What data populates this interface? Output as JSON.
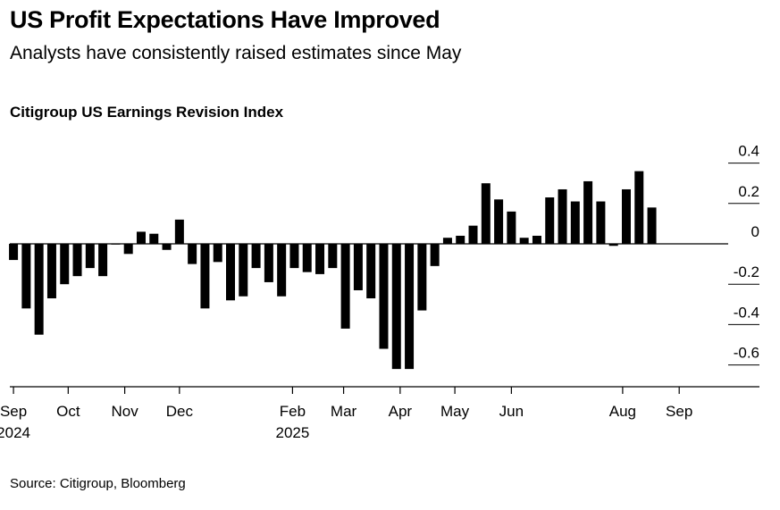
{
  "header": {
    "title": "US Profit Expectations Have Improved",
    "subtitle": "Analysts have consistently raised estimates since May",
    "chart_label": "Citigroup US Earnings Revision Index"
  },
  "footer": {
    "source": "Source: Citigroup, Bloomberg"
  },
  "colors": {
    "bar": "#000000",
    "axis": "#000000",
    "background": "#ffffff"
  },
  "chart_data": {
    "type": "bar",
    "title": "Citigroup US Earnings Revision Index",
    "xlabel": "",
    "ylabel": "",
    "ylim": [
      -0.7,
      0.4
    ],
    "yticks": [
      0.4,
      0.2,
      0,
      -0.2,
      -0.4,
      -0.6
    ],
    "ytick_labels": [
      "0.4",
      "0.2",
      "0",
      "-0.2",
      "-0.4",
      "-0.6"
    ],
    "grid": false,
    "axis_side": "right",
    "x_range": [
      "2024-08-30",
      "2025-10-15"
    ],
    "xticks": [
      {
        "date": "2024-09-01",
        "label": "Sep",
        "year": "2024"
      },
      {
        "date": "2024-10-01",
        "label": "Oct",
        "year": ""
      },
      {
        "date": "2024-11-01",
        "label": "Nov",
        "year": ""
      },
      {
        "date": "2024-12-01",
        "label": "Dec",
        "year": ""
      },
      {
        "date": "2025-02-01",
        "label": "Feb",
        "year": "2025"
      },
      {
        "date": "2025-03-01",
        "label": "Mar",
        "year": ""
      },
      {
        "date": "2025-04-01",
        "label": "Apr",
        "year": ""
      },
      {
        "date": "2025-05-01",
        "label": "May",
        "year": ""
      },
      {
        "date": "2025-06-01",
        "label": "Jun",
        "year": ""
      },
      {
        "date": "2025-08-01",
        "label": "Aug",
        "year": ""
      },
      {
        "date": "2025-09-01",
        "label": "Sep",
        "year": ""
      }
    ],
    "series": [
      {
        "name": "Citigroup US Earnings Revision Index",
        "points": [
          {
            "date": "2024-09-01",
            "value": -0.08
          },
          {
            "date": "2024-09-08",
            "value": -0.32
          },
          {
            "date": "2024-09-15",
            "value": -0.45
          },
          {
            "date": "2024-09-22",
            "value": -0.27
          },
          {
            "date": "2024-09-29",
            "value": -0.2
          },
          {
            "date": "2024-10-06",
            "value": -0.16
          },
          {
            "date": "2024-10-13",
            "value": -0.12
          },
          {
            "date": "2024-10-20",
            "value": -0.16
          },
          {
            "date": "2024-10-27",
            "value": 0.0
          },
          {
            "date": "2024-11-03",
            "value": -0.05
          },
          {
            "date": "2024-11-10",
            "value": 0.06
          },
          {
            "date": "2024-11-17",
            "value": 0.05
          },
          {
            "date": "2024-11-24",
            "value": -0.03
          },
          {
            "date": "2024-12-01",
            "value": 0.12
          },
          {
            "date": "2024-12-08",
            "value": -0.1
          },
          {
            "date": "2024-12-15",
            "value": -0.32
          },
          {
            "date": "2024-12-22",
            "value": -0.09
          },
          {
            "date": "2024-12-29",
            "value": -0.28
          },
          {
            "date": "2025-01-05",
            "value": -0.26
          },
          {
            "date": "2025-01-12",
            "value": -0.12
          },
          {
            "date": "2025-01-19",
            "value": -0.19
          },
          {
            "date": "2025-01-26",
            "value": -0.26
          },
          {
            "date": "2025-02-02",
            "value": -0.12
          },
          {
            "date": "2025-02-09",
            "value": -0.14
          },
          {
            "date": "2025-02-16",
            "value": -0.15
          },
          {
            "date": "2025-02-23",
            "value": -0.12
          },
          {
            "date": "2025-03-02",
            "value": -0.42
          },
          {
            "date": "2025-03-09",
            "value": -0.23
          },
          {
            "date": "2025-03-16",
            "value": -0.27
          },
          {
            "date": "2025-03-23",
            "value": -0.52
          },
          {
            "date": "2025-03-30",
            "value": -0.62
          },
          {
            "date": "2025-04-06",
            "value": -0.62
          },
          {
            "date": "2025-04-13",
            "value": -0.33
          },
          {
            "date": "2025-04-20",
            "value": -0.11
          },
          {
            "date": "2025-04-27",
            "value": 0.03
          },
          {
            "date": "2025-05-04",
            "value": 0.04
          },
          {
            "date": "2025-05-11",
            "value": 0.09
          },
          {
            "date": "2025-05-18",
            "value": 0.3
          },
          {
            "date": "2025-05-25",
            "value": 0.22
          },
          {
            "date": "2025-06-01",
            "value": 0.16
          },
          {
            "date": "2025-06-08",
            "value": 0.03
          },
          {
            "date": "2025-06-15",
            "value": 0.04
          },
          {
            "date": "2025-06-22",
            "value": 0.23
          },
          {
            "date": "2025-06-29",
            "value": 0.27
          },
          {
            "date": "2025-07-06",
            "value": 0.21
          },
          {
            "date": "2025-07-13",
            "value": 0.31
          },
          {
            "date": "2025-07-20",
            "value": 0.21
          },
          {
            "date": "2025-07-27",
            "value": -0.01
          },
          {
            "date": "2025-08-03",
            "value": 0.27
          },
          {
            "date": "2025-08-10",
            "value": 0.36
          },
          {
            "date": "2025-08-17",
            "value": 0.18
          }
        ]
      }
    ]
  }
}
